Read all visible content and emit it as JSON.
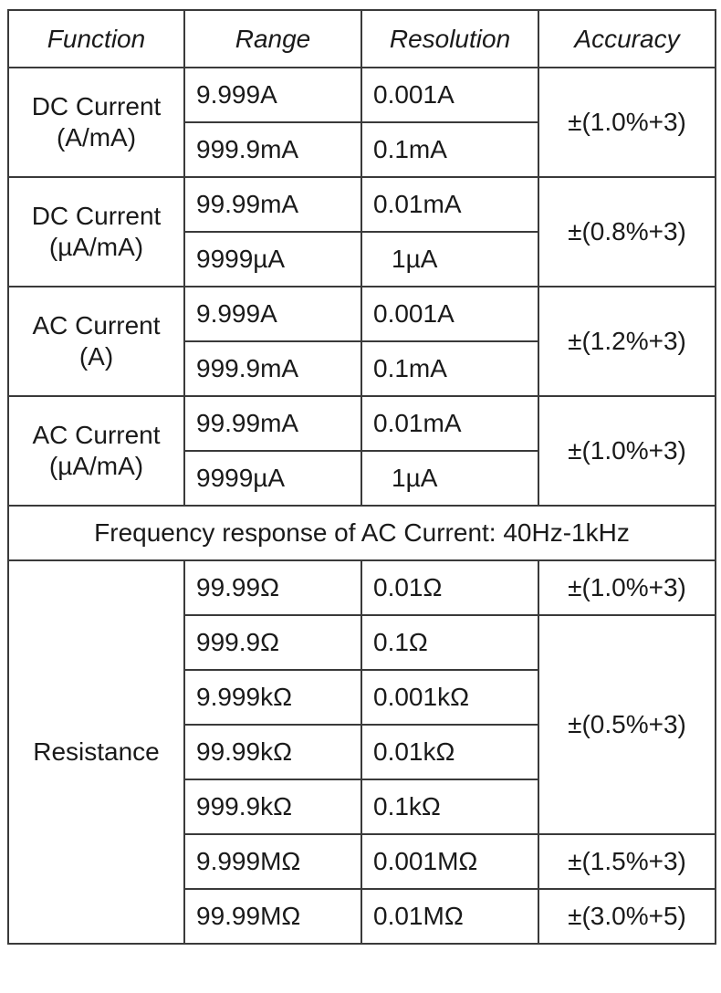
{
  "header": {
    "function": "Function",
    "range": "Range",
    "resolution": "Resolution",
    "accuracy": "Accuracy"
  },
  "groups": [
    {
      "function_line1": "DC Current",
      "function_line2": "(A/mA)",
      "accuracy": "±(1.0%+3)",
      "rows": [
        {
          "range": "9.999A",
          "resolution": "0.001A"
        },
        {
          "range": "999.9mA",
          "resolution": "0.1mA"
        }
      ]
    },
    {
      "function_line1": "DC Current",
      "function_line2": "(µA/mA)",
      "accuracy": "±(0.8%+3)",
      "rows": [
        {
          "range": "99.99mA",
          "resolution": "0.01mA"
        },
        {
          "range": "9999µA",
          "resolution": "1µA"
        }
      ]
    },
    {
      "function_line1": "AC Current",
      "function_line2": "(A)",
      "accuracy": "±(1.2%+3)",
      "rows": [
        {
          "range": "9.999A",
          "resolution": "0.001A"
        },
        {
          "range": "999.9mA",
          "resolution": "0.1mA"
        }
      ]
    },
    {
      "function_line1": "AC Current",
      "function_line2": "(µA/mA)",
      "accuracy": "±(1.0%+3)",
      "rows": [
        {
          "range": "99.99mA",
          "resolution": "0.01mA"
        },
        {
          "range": "9999µA",
          "resolution": "1µA"
        }
      ]
    }
  ],
  "frequency_note": "Frequency response of AC Current: 40Hz-1kHz",
  "resistance": {
    "function": "Resistance",
    "rows": [
      {
        "range": "99.99Ω",
        "resolution": "0.01Ω"
      },
      {
        "range": "999.9Ω",
        "resolution": "0.1Ω"
      },
      {
        "range": "9.999kΩ",
        "resolution": "0.001kΩ"
      },
      {
        "range": "99.99kΩ",
        "resolution": "0.01kΩ"
      },
      {
        "range": "999.9kΩ",
        "resolution": "0.1kΩ"
      },
      {
        "range": "9.999MΩ",
        "resolution": "0.001MΩ"
      },
      {
        "range": "99.99MΩ",
        "resolution": "0.01MΩ"
      }
    ],
    "accuracies": [
      "±(1.0%+3)",
      "±(0.5%+3)",
      "±(1.5%+3)",
      "±(3.0%+5)"
    ]
  }
}
